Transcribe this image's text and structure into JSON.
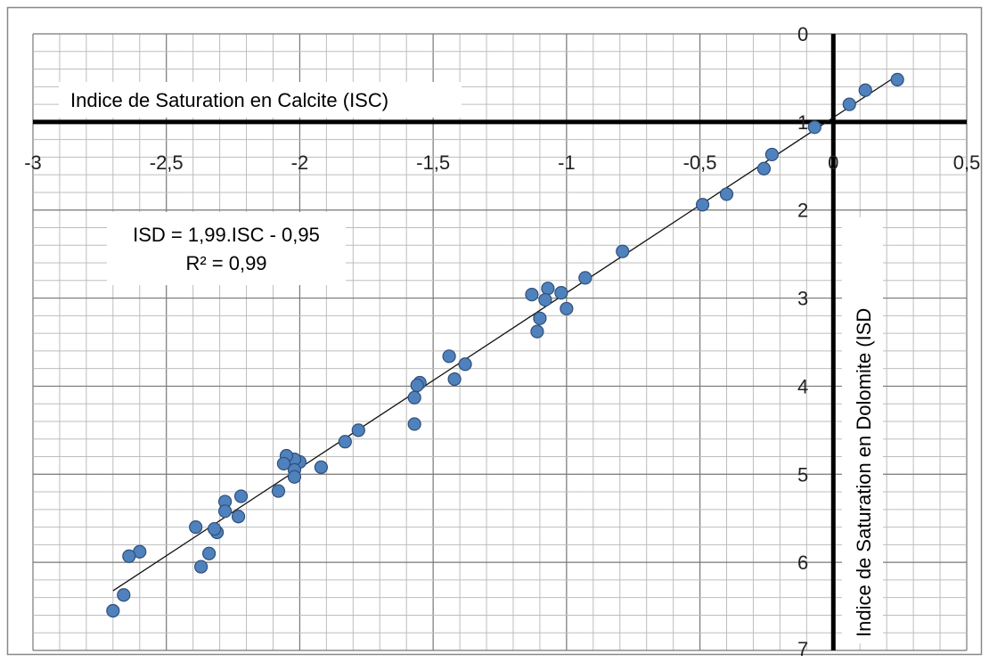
{
  "chart_data": {
    "type": "scatter",
    "title": "",
    "xlabel": "Indice de Saturation en Calcite (ISC)",
    "ylabel": "Indice de Saturation en Dolomite (ISD",
    "xlim": [
      -3,
      0.5
    ],
    "ylim": [
      -7,
      0
    ],
    "x_ticks": [
      "-3",
      "-2,5",
      "-2",
      "-1,5",
      "-1",
      "-0,5",
      "0",
      "0,5"
    ],
    "y_ticks": [
      "0",
      "1",
      "2",
      "3",
      "4",
      "5",
      "6",
      "7"
    ],
    "grid": true,
    "equation": "ISD = 1,99.ISC - 0,95",
    "r_squared": "R² = 0,99",
    "trendline": {
      "slope": 1.99,
      "intercept": -0.95,
      "x_range": [
        -2.7,
        0.25
      ]
    },
    "points": [
      [
        0.24,
        -0.52
      ],
      [
        0.12,
        -0.64
      ],
      [
        0.06,
        -0.8
      ],
      [
        -0.07,
        -1.06
      ],
      [
        -0.23,
        -1.37
      ],
      [
        -0.26,
        -1.53
      ],
      [
        -0.4,
        -1.82
      ],
      [
        -0.49,
        -1.94
      ],
      [
        -0.79,
        -2.47
      ],
      [
        -0.93,
        -2.77
      ],
      [
        -1.0,
        -3.12
      ],
      [
        -1.02,
        -2.94
      ],
      [
        -1.07,
        -2.89
      ],
      [
        -1.08,
        -3.02
      ],
      [
        -1.1,
        -3.23
      ],
      [
        -1.11,
        -3.38
      ],
      [
        -1.13,
        -2.96
      ],
      [
        -1.38,
        -3.75
      ],
      [
        -1.42,
        -3.92
      ],
      [
        -1.44,
        -3.66
      ],
      [
        -1.55,
        -3.96
      ],
      [
        -1.56,
        -3.99
      ],
      [
        -1.57,
        -4.13
      ],
      [
        -1.57,
        -4.43
      ],
      [
        -1.78,
        -4.5
      ],
      [
        -1.83,
        -4.63
      ],
      [
        -1.92,
        -4.92
      ],
      [
        -2.0,
        -4.86
      ],
      [
        -2.02,
        -4.83
      ],
      [
        -2.02,
        -4.95
      ],
      [
        -2.02,
        -5.03
      ],
      [
        -2.05,
        -4.79
      ],
      [
        -2.06,
        -4.88
      ],
      [
        -2.08,
        -5.19
      ],
      [
        -2.22,
        -5.25
      ],
      [
        -2.23,
        -5.48
      ],
      [
        -2.28,
        -5.31
      ],
      [
        -2.28,
        -5.42
      ],
      [
        -2.31,
        -5.66
      ],
      [
        -2.32,
        -5.62
      ],
      [
        -2.34,
        -5.9
      ],
      [
        -2.37,
        -6.05
      ],
      [
        -2.39,
        -5.6
      ],
      [
        -2.6,
        -5.88
      ],
      [
        -2.64,
        -5.93
      ],
      [
        -2.66,
        -6.37
      ],
      [
        -2.7,
        -6.55
      ]
    ]
  }
}
